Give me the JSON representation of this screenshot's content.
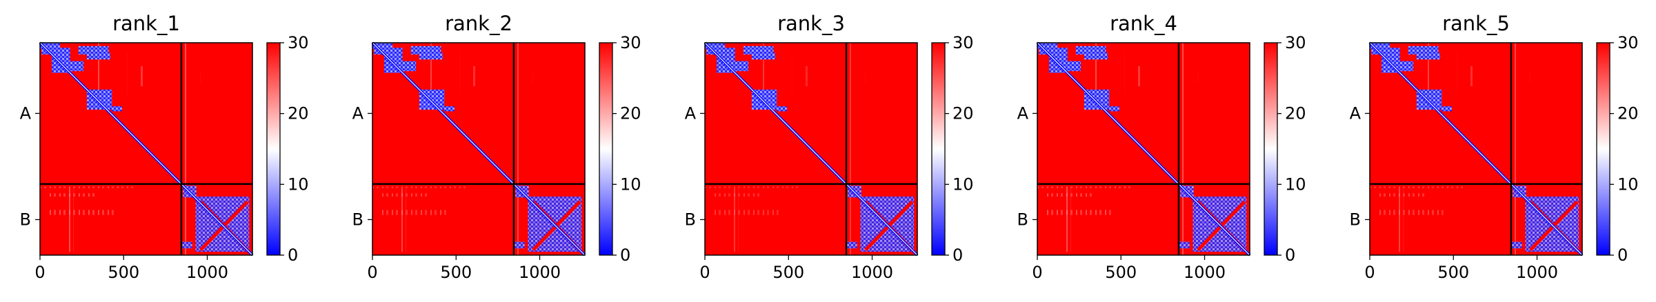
{
  "chart_data": [
    {
      "type": "heatmap",
      "title": "rank_1",
      "xlabel": "",
      "ylabel": "",
      "x_ticks": [
        "0",
        "500",
        "1000"
      ],
      "x_tick_values": [
        0,
        500,
        1000
      ],
      "xlim": [
        0,
        1270
      ],
      "ylim": [
        0,
        1270
      ],
      "chain_labels": [
        "A",
        "B"
      ],
      "chain_boundary": 845,
      "colorbar": {
        "ticks": [
          "0",
          "10",
          "20",
          "30"
        ],
        "range": [
          0,
          30
        ],
        "colormap": "bwr"
      }
    },
    {
      "type": "heatmap",
      "title": "rank_2",
      "xlabel": "",
      "ylabel": "",
      "x_ticks": [
        "0",
        "500",
        "1000"
      ],
      "x_tick_values": [
        0,
        500,
        1000
      ],
      "xlim": [
        0,
        1270
      ],
      "ylim": [
        0,
        1270
      ],
      "chain_labels": [
        "A",
        "B"
      ],
      "chain_boundary": 845,
      "colorbar": {
        "ticks": [
          "0",
          "10",
          "20",
          "30"
        ],
        "range": [
          0,
          30
        ],
        "colormap": "bwr"
      }
    },
    {
      "type": "heatmap",
      "title": "rank_3",
      "xlabel": "",
      "ylabel": "",
      "x_ticks": [
        "0",
        "500",
        "1000"
      ],
      "x_tick_values": [
        0,
        500,
        1000
      ],
      "xlim": [
        0,
        1270
      ],
      "ylim": [
        0,
        1270
      ],
      "chain_labels": [
        "A",
        "B"
      ],
      "chain_boundary": 845,
      "colorbar": {
        "ticks": [
          "0",
          "10",
          "20",
          "30"
        ],
        "range": [
          0,
          30
        ],
        "colormap": "bwr"
      }
    },
    {
      "type": "heatmap",
      "title": "rank_4",
      "xlabel": "",
      "ylabel": "",
      "x_ticks": [
        "0",
        "500",
        "1000"
      ],
      "x_tick_values": [
        0,
        500,
        1000
      ],
      "xlim": [
        0,
        1270
      ],
      "ylim": [
        0,
        1270
      ],
      "chain_labels": [
        "A",
        "B"
      ],
      "chain_boundary": 845,
      "colorbar": {
        "ticks": [
          "0",
          "10",
          "20",
          "30"
        ],
        "range": [
          0,
          30
        ],
        "colormap": "bwr"
      }
    },
    {
      "type": "heatmap",
      "title": "rank_5",
      "xlabel": "",
      "ylabel": "",
      "x_ticks": [
        "0",
        "500",
        "1000"
      ],
      "x_tick_values": [
        0,
        500,
        1000
      ],
      "xlim": [
        0,
        1270
      ],
      "ylim": [
        0,
        1270
      ],
      "chain_labels": [
        "A",
        "B"
      ],
      "chain_boundary": 845,
      "colorbar": {
        "ticks": [
          "0",
          "10",
          "20",
          "30"
        ],
        "range": [
          0,
          30
        ],
        "colormap": "bwr"
      }
    }
  ],
  "colors": {
    "high": "#ff0000",
    "mid": "#ffffff",
    "low": "#0000ff",
    "frame": "#000000"
  }
}
